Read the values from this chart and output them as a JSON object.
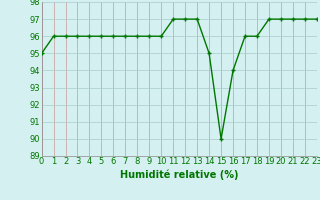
{
  "x": [
    0,
    1,
    2,
    3,
    4,
    5,
    6,
    7,
    8,
    9,
    10,
    11,
    12,
    13,
    14,
    15,
    16,
    17,
    18,
    19,
    20,
    21,
    22,
    23
  ],
  "y": [
    95,
    96,
    96,
    96,
    96,
    96,
    96,
    96,
    96,
    96,
    96,
    97,
    97,
    97,
    95,
    90,
    94,
    96,
    96,
    97,
    97,
    97,
    97,
    97
  ],
  "line_color": "#007700",
  "marker": "+",
  "marker_size": 3,
  "marker_color": "#007700",
  "bg_color": "#d4f0f0",
  "grid_color_v": "#cc9999",
  "grid_color_h": "#aacccc",
  "xlabel": "Humidité relative (%)",
  "xlabel_color": "#007700",
  "tick_color": "#007700",
  "ylim": [
    89,
    98
  ],
  "xlim": [
    0,
    23
  ],
  "yticks": [
    89,
    90,
    91,
    92,
    93,
    94,
    95,
    96,
    97,
    98
  ],
  "xticks": [
    0,
    1,
    2,
    3,
    4,
    5,
    6,
    7,
    8,
    9,
    10,
    11,
    12,
    13,
    14,
    15,
    16,
    17,
    18,
    19,
    20,
    21,
    22,
    23
  ],
  "xtick_labels": [
    "0",
    "1",
    "2",
    "3",
    "4",
    "5",
    "6",
    "7",
    "8",
    "9",
    "10",
    "11",
    "12",
    "13",
    "14",
    "15",
    "16",
    "17",
    "18",
    "19",
    "20",
    "21",
    "22",
    "23"
  ],
  "tick_fontsize": 6,
  "xlabel_fontsize": 7,
  "line_width": 1.0
}
